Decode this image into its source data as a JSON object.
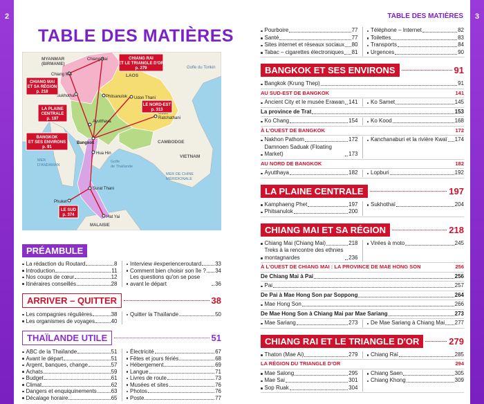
{
  "page_numbers": [
    2,
    3
  ],
  "running_header": "TABLE DES MATIÈRES",
  "title": "TABLE DES MATIÈRES",
  "map": {
    "regions": [
      "MYANMAR",
      "(BIRMANIE)",
      "LAOS",
      "Golfe du Tonkin",
      "CAMBODGE",
      "VIETNAM",
      "MER",
      "D'ANDAMAN",
      "Golfe",
      "de Thaïlande",
      "MER DE CHINE",
      "MÉRIDIONALE",
      "MALAISIE"
    ],
    "cities": [
      "Chiang Rai",
      "Chiang Mai",
      "Sukhothai",
      "Phitsanulok",
      "Udon Thani",
      "Ubon",
      "Ratchathani",
      "Ayutthaya",
      "Bangkok",
      "Hua Hin",
      "Surat Thani",
      "Phuket",
      "Hat Yai"
    ],
    "callouts": [
      {
        "lines": [
          "CHIANG RAI",
          "ET LE TRIANGLE D'OR"
        ],
        "page": "p. 279"
      },
      {
        "lines": [
          "CHIANG MAI",
          "ET SA RÉGION"
        ],
        "page": "p. 218"
      },
      {
        "lines": [
          "LA PLAINE",
          "CENTRALE"
        ],
        "page": "p. 197"
      },
      {
        "lines": [
          "LE NORD-EST"
        ],
        "page": "p. 313"
      },
      {
        "lines": [
          "BANGKOK",
          "ET SES ENVIRONS"
        ],
        "page": "p. 91"
      },
      {
        "lines": [
          "LE SUD"
        ],
        "page": "p. 374"
      }
    ]
  },
  "left_sections": [
    {
      "title": "PRÉAMBULE",
      "style": "filled",
      "color": "#8b2fc9",
      "blocks": [
        {
          "columns": [
            [
              {
                "text": "La rédaction du Routard",
                "page": 8
              },
              {
                "text": "Introduction",
                "page": 11
              },
              {
                "text": "Nos coups de cœur",
                "page": 12
              },
              {
                "text": "Itinéraires conseillés",
                "page": 28
              }
            ],
            [
              {
                "text": "Interview #experienceroutard",
                "page": 33
              },
              {
                "text": "Comment bien choisir son île ?",
                "page": 34
              },
              {
                "text": "Les questions qu'on se pose avant le départ",
                "page": 36
              }
            ]
          ]
        }
      ]
    },
    {
      "title": "ARRIVER – QUITTER",
      "page": 38,
      "style": "outlined",
      "color": "#d0112b",
      "blocks": [
        {
          "columns": [
            [
              {
                "text": "Les compagnies régulières",
                "page": 38
              },
              {
                "text": "Les organismes de voyages",
                "page": 40
              }
            ],
            [
              {
                "text": "Quitter la Thaïlande",
                "page": 50
              }
            ]
          ]
        }
      ]
    },
    {
      "title": "THAÏLANDE UTILE",
      "page": 51,
      "style": "outlined",
      "color": "#8b2fc9",
      "blocks": [
        {
          "columns": [
            [
              {
                "text": "ABC de la Thaïlande",
                "page": 51
              },
              {
                "text": "Avant le départ",
                "page": 51
              },
              {
                "text": "Argent, banques, change",
                "page": 57
              },
              {
                "text": "Achats",
                "page": 59
              },
              {
                "text": "Budget",
                "page": 61
              },
              {
                "text": "Climat",
                "page": 62
              },
              {
                "text": "Dangers et enquiquinements",
                "page": 63
              },
              {
                "text": "Décalage horaire",
                "page": 65
              }
            ],
            [
              {
                "text": "Électricité",
                "page": 67
              },
              {
                "text": "Fêtes et jours fériés",
                "page": 68
              },
              {
                "text": "Hébergement",
                "page": 69
              },
              {
                "text": "Langue",
                "page": 71
              },
              {
                "text": "Livres de route",
                "page": 73
              },
              {
                "text": "Musées et sites",
                "page": 76
              },
              {
                "text": "Photos",
                "page": 76
              },
              {
                "text": "Poste",
                "page": 77
              }
            ]
          ]
        }
      ]
    }
  ],
  "right_sections": [
    {
      "blocks": [
        {
          "columns": [
            [
              {
                "text": "Pourboire",
                "page": 77
              },
              {
                "text": "Santé",
                "page": 77
              },
              {
                "text": "Sites internet et réseaux sociaux",
                "page": 80
              },
              {
                "text": "Tabac – cigarettes électroniques",
                "page": 81
              }
            ],
            [
              {
                "text": "Téléphone – Internet",
                "page": 82
              },
              {
                "text": "Toilettes",
                "page": 83
              },
              {
                "text": "Transports",
                "page": 84
              },
              {
                "text": "Urgences",
                "page": 90
              }
            ]
          ]
        }
      ]
    },
    {
      "title": "BANGKOK ET SES ENVIRONS",
      "page": 91,
      "style": "filled",
      "color": "#d0112b",
      "blocks": [
        {
          "item": {
            "text": "Bangkok (Krung Thep)",
            "page": 91
          }
        },
        {
          "subheading": {
            "text": "AU SUD-EST DE BANGKOK",
            "page": 141
          }
        },
        {
          "columns": [
            [
              {
                "text": "Ancient City et le musée Erawan",
                "page": 141
              }
            ],
            [
              {
                "text": "Ko Samet",
                "page": 145
              }
            ]
          ]
        },
        {
          "strong": {
            "text": "La province de Trat",
            "page": 153
          }
        },
        {
          "columns": [
            [
              {
                "text": "Ko Chang",
                "page": 154
              }
            ],
            [
              {
                "text": "Ko Kood",
                "page": 168
              }
            ]
          ]
        },
        {
          "subheading": {
            "text": "À L'OUEST DE BANGKOK",
            "page": 172
          }
        },
        {
          "columns": [
            [
              {
                "text": "Nakhon Pathom",
                "page": 172
              },
              {
                "text": "Damnoen Saduak (Floating Market)",
                "page": 173
              }
            ],
            [
              {
                "text": "Kanchanaburi et la rivière Kwaï",
                "page": 174
              }
            ]
          ]
        },
        {
          "subheading": {
            "text": "AU NORD DE BANGKOK",
            "page": 182
          }
        },
        {
          "columns": [
            [
              {
                "text": "Ayutthaya",
                "page": 182
              }
            ],
            [
              {
                "text": "Lopburi",
                "page": 192
              }
            ]
          ]
        }
      ]
    },
    {
      "title": "LA PLAINE CENTRALE",
      "page": 197,
      "style": "filled",
      "color": "#d0112b",
      "blocks": [
        {
          "columns": [
            [
              {
                "text": "Kamphaeng Phet",
                "page": 197
              },
              {
                "text": "Phitsanulok",
                "page": 200
              }
            ],
            [
              {
                "text": "Sukhothaï",
                "page": 204
              }
            ]
          ]
        }
      ]
    },
    {
      "title": "CHIANG MAI ET SA RÉGION",
      "page": 218,
      "style": "filled",
      "color": "#d0112b",
      "blocks": [
        {
          "columns": [
            [
              {
                "text": "Chiang Mai (Chiang Mai)",
                "page": 218
              },
              {
                "text": "Treks à la rencontre des ethnies montagnardes",
                "page": 236
              }
            ],
            [
              {
                "text": "Virées à moto",
                "page": 245
              }
            ]
          ]
        },
        {
          "subheading": {
            "text": "À L'OUEST DE CHIANG MAI : LA PROVINCE DE MAE HONG SON",
            "page": 256
          }
        },
        {
          "strong": {
            "text": "De Chiang Mai à Pai",
            "page": 256
          }
        },
        {
          "item": {
            "text": "Pai",
            "page": 257
          }
        },
        {
          "strong": {
            "text": "De Pai à Mae Hong Son par Soppong",
            "page": 264
          }
        },
        {
          "item": {
            "text": "Mae Hong Son",
            "page": 266
          }
        },
        {
          "strong": {
            "text": "De Mae Hong Son à Chiang Mai par Mae Sariang",
            "page": 273
          }
        },
        {
          "columns": [
            [
              {
                "text": "Mae Sariang",
                "page": 273
              }
            ],
            [
              {
                "text": "De Mae Sariang à Chiang Mai",
                "page": 277
              }
            ]
          ]
        }
      ]
    },
    {
      "title": "CHIANG RAI ET LE TRIANGLE D'OR",
      "page": 279,
      "style": "filled",
      "color": "#d0112b",
      "blocks": [
        {
          "columns": [
            [
              {
                "text": "Thaton (Mae Ai)",
                "page": 279
              }
            ],
            [
              {
                "text": "Chiang Raï",
                "page": 285
              }
            ]
          ]
        },
        {
          "subheading": {
            "text": "LA RÉGION DU TRIANGLE D'OR",
            "page": 294
          }
        },
        {
          "columns": [
            [
              {
                "text": "Mae Salong",
                "page": 295
              },
              {
                "text": "Mae Sai",
                "page": 301
              },
              {
                "text": "Sop Ruak",
                "page": 304
              }
            ],
            [
              {
                "text": "Chiang Saen",
                "page": 305
              },
              {
                "text": "Chiang Khong",
                "page": 309
              }
            ]
          ]
        }
      ]
    }
  ]
}
